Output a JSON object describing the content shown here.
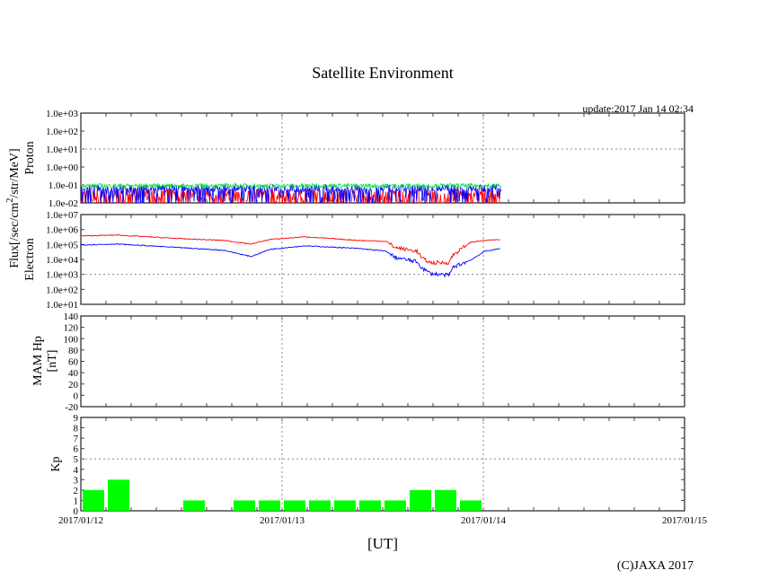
{
  "title": "Satellite Environment",
  "update": "update:2017 Jan 14 02:34",
  "copyright": "(C)JAXA 2017",
  "xlabel": "[UT]",
  "flux_label": "Flux[/sec/cm",
  "flux_sup": "2",
  "flux_label_tail": "/str/MeV]",
  "colors": {
    "red": "#ff0000",
    "blue": "#0000ff",
    "green": "#00e040",
    "kp": "#00ff00"
  },
  "chart_data": [
    {
      "type": "line",
      "name": "proton",
      "ylabel": "Proton",
      "yscale": "log",
      "ylim": [
        0.01,
        1000
      ],
      "yticks": [
        "1.0e-02",
        "1.0e-01",
        "1.0e+00",
        "1.0e+01",
        "1.0e+02",
        "1.0e+03"
      ],
      "x_unit": "hours since 2017/01/12 00:00 UT",
      "xlim": [
        0,
        72
      ],
      "data_end_hours": 50.1,
      "series": [
        {
          "name": "green",
          "color": "#00e040",
          "typical_level": 0.09
        },
        {
          "name": "blue",
          "color": "#0000ff",
          "typical_level": 0.06
        },
        {
          "name": "red",
          "color": "#ff0000",
          "typical_level": 0.02
        }
      ]
    },
    {
      "type": "line",
      "name": "electron",
      "ylabel": "Electron",
      "yscale": "log",
      "ylim": [
        10,
        10000000
      ],
      "yticks": [
        "1.0e+01",
        "1.0e+02",
        "1.0e+03",
        "1.0e+04",
        "1.0e+05",
        "1.0e+06",
        "1.0e+07"
      ],
      "x": [
        0,
        4.3,
        11.8,
        17.1,
        20.3,
        22.5,
        26.7,
        33.2,
        36.4,
        37.5,
        40.1,
        40.7,
        41.7,
        43.9,
        44.4,
        46.5,
        48.2,
        50.1
      ],
      "series": [
        {
          "name": "red",
          "color": "#ff0000",
          "log10_values": [
            5.57,
            5.63,
            5.39,
            5.27,
            5.03,
            5.33,
            5.51,
            5.27,
            5.21,
            4.79,
            4.55,
            4.07,
            3.78,
            3.78,
            4.31,
            5.15,
            5.27,
            5.33
          ]
        },
        {
          "name": "blue",
          "color": "#0000ff",
          "log10_values": [
            4.97,
            5.03,
            4.79,
            4.61,
            4.19,
            4.67,
            4.91,
            4.73,
            4.55,
            4.13,
            3.84,
            3.42,
            3.06,
            2.94,
            3.48,
            3.96,
            4.55,
            4.73
          ]
        }
      ]
    },
    {
      "type": "line",
      "name": "mam_hp",
      "ylabel": "MAM Hp",
      "ylabel2": "[nT]",
      "ylim": [
        -20,
        140
      ],
      "yticks": [
        "-20",
        "0",
        "20",
        "40",
        "60",
        "80",
        "100",
        "120",
        "140"
      ],
      "series": []
    },
    {
      "type": "bar",
      "name": "kp",
      "ylabel": "Kp",
      "ylim": [
        0,
        9
      ],
      "yticks": [
        "0",
        "1",
        "2",
        "3",
        "4",
        "5",
        "6",
        "7",
        "8",
        "9"
      ],
      "bin_hours": 3,
      "values": [
        2,
        3,
        0,
        0,
        1,
        0,
        1,
        1,
        1,
        1,
        1,
        1,
        1,
        2,
        2,
        1
      ],
      "color": "#00ff00"
    }
  ],
  "xticks": [
    "2017/01/12",
    "2017/01/13",
    "2017/01/14",
    "2017/01/15"
  ]
}
